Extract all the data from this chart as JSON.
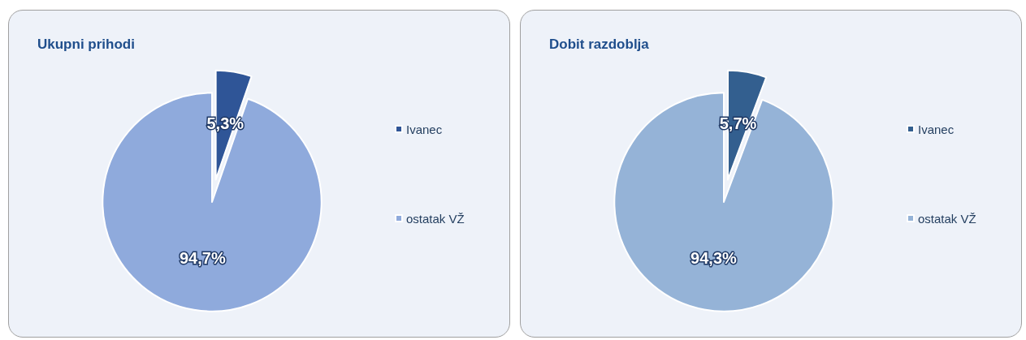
{
  "chart_data": [
    {
      "type": "pie",
      "title": "Ukupni prihodi",
      "categories": [
        "Ivanec",
        "ostatak VŽ"
      ],
      "values": [
        5.3,
        94.7
      ],
      "colors": [
        "#2f5597",
        "#8faadc"
      ],
      "value_labels": [
        "5,3%",
        "94,7%"
      ],
      "legend": "right"
    },
    {
      "type": "pie",
      "title": "Dobit razdoblja",
      "categories": [
        "Ivanec",
        "ostatak VŽ"
      ],
      "values": [
        5.7,
        94.3
      ],
      "colors": [
        "#335f8f",
        "#95b3d7"
      ],
      "value_labels": [
        "5,7%",
        "94,3%"
      ],
      "legend": "right"
    }
  ]
}
